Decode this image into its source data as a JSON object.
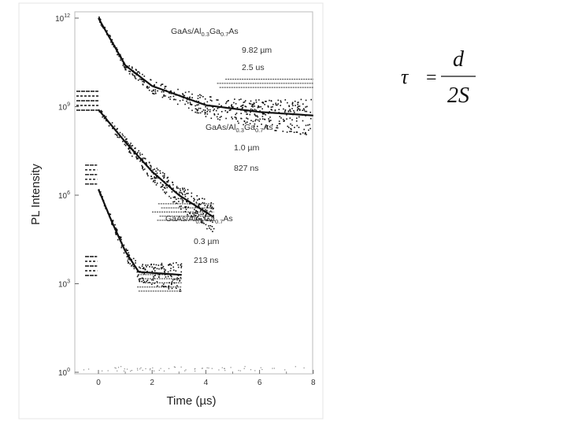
{
  "chart_data": {
    "type": "scatter",
    "title": "",
    "xlabel": "Time (µs)",
    "ylabel": "PL Intensity",
    "xlim": [
      -1,
      8
    ],
    "ylim_log": [
      0,
      12
    ],
    "x_ticks": [
      "0",
      "2",
      "4",
      "6",
      "8"
    ],
    "x_tick_values": [
      0,
      2,
      4,
      6,
      8
    ],
    "y_ticks": [
      {
        "base": "10",
        "exp": "0",
        "log_value": 0
      },
      {
        "base": "10",
        "exp": "3",
        "log_value": 3
      },
      {
        "base": "10",
        "exp": "6",
        "log_value": 6
      },
      {
        "base": "10",
        "exp": "9",
        "log_value": 9
      },
      {
        "base": "10",
        "exp": "12",
        "log_value": 12
      }
    ],
    "series": [
      {
        "name": "GaAs/Al0.3Ga0.7As 9.82 µm",
        "label_parts": {
          "a": "GaAs/Al",
          "b": "0.3",
          "c": "Ga",
          "d": "0.7",
          "e": "As"
        },
        "thickness": "9.82 µm",
        "lifetime": "2.5 us",
        "lifetime_us": 2.5,
        "log_start": 12,
        "log_floor": 8.0,
        "t_end": 8,
        "pre_zero_log": 9.2,
        "lines": [
          {
            "t": 0,
            "log_i": 12.0
          },
          {
            "t": 1,
            "log_i": 10.4
          },
          {
            "t": 2,
            "log_i": 9.7
          },
          {
            "t": 4,
            "log_i": 9.05
          },
          {
            "t": 6,
            "log_i": 8.82
          },
          {
            "t": 8,
            "log_i": 8.7
          }
        ]
      },
      {
        "name": "GaAs/Al0.3Ga0.7As 1.0 µm",
        "label_parts": {
          "a": "GaAs/Al",
          "b": "0.3",
          "c": "Ga",
          "d": "0.7",
          "e": "As"
        },
        "thickness": "1.0 µm",
        "lifetime": "827 ns",
        "lifetime_us": 0.827,
        "log_start": 8.9,
        "log_floor": 4.6,
        "t_end": 4.3,
        "pre_zero_log": 6.7,
        "lines": [
          {
            "t": 0,
            "log_i": 8.9
          },
          {
            "t": 1,
            "log_i": 7.8
          },
          {
            "t": 2,
            "log_i": 6.8
          },
          {
            "t": 3,
            "log_i": 6.0
          },
          {
            "t": 4.3,
            "log_i": 5.25
          }
        ]
      },
      {
        "name": "GaAs/Al0.3Ga0.7As 0.3 µm",
        "label_parts": {
          "a": "GaAs/Al",
          "b": "0.3",
          "c": "Ga",
          "d": "0.7",
          "e": "As"
        },
        "thickness": "0.3 µm",
        "lifetime": "213 ns",
        "lifetime_us": 0.213,
        "log_start": 6.2,
        "log_floor": 2.2,
        "t_end": 3.1,
        "pre_zero_log": 3.6,
        "lines": [
          {
            "t": 0,
            "log_i": 6.2
          },
          {
            "t": 0.5,
            "log_i": 5.1
          },
          {
            "t": 1,
            "log_i": 4.1
          },
          {
            "t": 1.5,
            "log_i": 3.4
          },
          {
            "t": 3.1,
            "log_i": 3.3
          }
        ]
      }
    ]
  },
  "formula": {
    "lhs": "τ",
    "eq": "=",
    "numerator": "d",
    "denominator": "2S"
  },
  "colors": {
    "ink": "#111111",
    "noise": "#555555",
    "frame": "#bbbbbb"
  }
}
